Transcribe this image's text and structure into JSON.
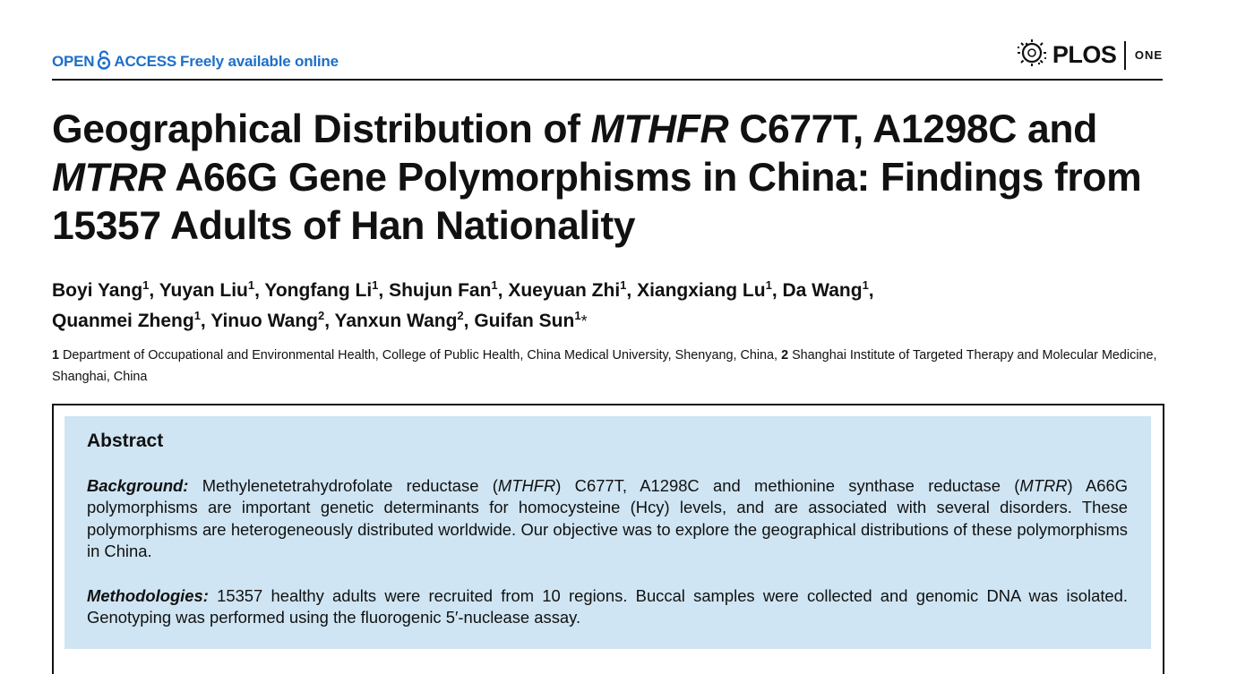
{
  "header": {
    "open_label": "OPEN",
    "access_label": "ACCESS",
    "freely_label": "Freely available online",
    "brand_color": "#1e6fc9",
    "journal_word": "PLOS",
    "journal_sub": "ONE"
  },
  "title": {
    "part1": "Geographical Distribution of ",
    "gene1": "MTHFR",
    "part2": " C677T, A1298C and ",
    "gene2": "MTRR",
    "part3": " A66G Gene Polymorphisms in China: Findings from 15357 Adults of Han Nationality"
  },
  "authors": [
    {
      "name": "Boyi Yang",
      "aff": "1",
      "sep": ", "
    },
    {
      "name": "Yuyan Liu",
      "aff": "1",
      "sep": ", "
    },
    {
      "name": "Yongfang Li",
      "aff": "1",
      "sep": ", "
    },
    {
      "name": "Shujun Fan",
      "aff": "1",
      "sep": ", "
    },
    {
      "name": "Xueyuan Zhi",
      "aff": "1",
      "sep": ", "
    },
    {
      "name": "Xiangxiang Lu",
      "aff": "1",
      "sep": ", "
    },
    {
      "name": "Da Wang",
      "aff": "1",
      "sep": ", "
    },
    {
      "name": "Quanmei Zheng",
      "aff": "1",
      "sep": ", "
    },
    {
      "name": "Yinuo Wang",
      "aff": "2",
      "sep": ", "
    },
    {
      "name": "Yanxun Wang",
      "aff": "2",
      "sep": ", "
    },
    {
      "name": "Guifan Sun",
      "aff": "1",
      "sep": ""
    }
  ],
  "corresponding_mark": "*",
  "affiliations": {
    "n1": "1",
    "a1": " Department of Occupational and Environmental Health, College of Public Health, China Medical University, Shenyang, China, ",
    "n2": "2",
    "a2": " Shanghai Institute of Targeted Therapy and Molecular Medicine, Shanghai, China"
  },
  "abstract": {
    "heading": "Abstract",
    "background": {
      "label": "Background:",
      "t1": " Methylenetetrahydrofolate reductase (",
      "g1": "MTHFR",
      "t2": ") C677T, A1298C and methionine synthase reductase (",
      "g2": "MTRR",
      "t3": ") A66G polymorphisms are important genetic determinants for homocysteine (Hcy) levels, and are associated with several disorders. These polymorphisms are heterogeneously distributed worldwide. Our objective was to explore the geographical distributions of these polymorphisms in China."
    },
    "methodologies": {
      "label": "Methodologies:",
      "text": " 15357 healthy adults were recruited from 10 regions. Buccal samples were collected and genomic DNA was isolated. Genotyping was performed using the fluorogenic 5′-nuclease assay."
    },
    "box_color": "#cfe5f3"
  }
}
